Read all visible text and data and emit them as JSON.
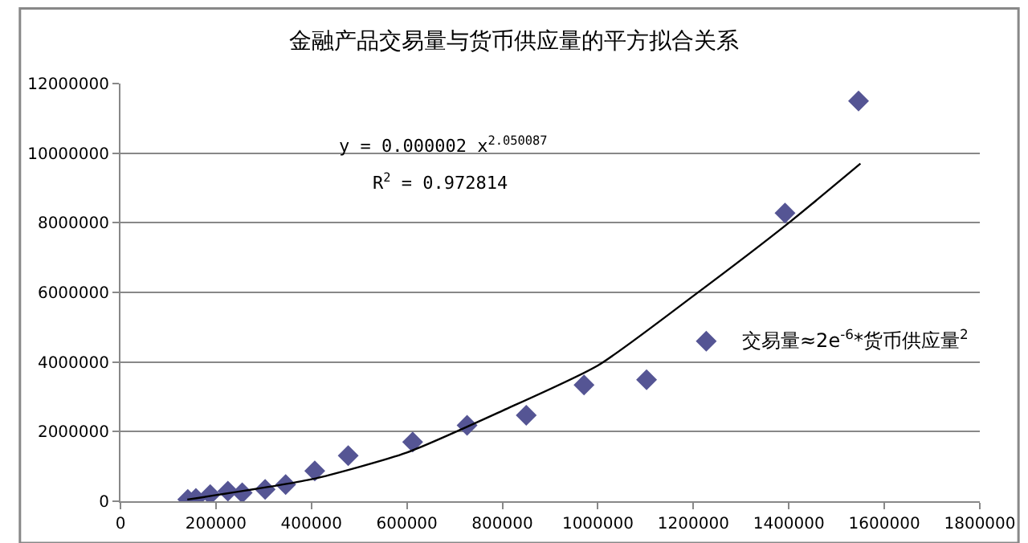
{
  "chart_data": {
    "type": "scatter",
    "title": "金融产品交易量与货币供应量的平方拟合关系",
    "xlim": [
      0,
      1800000
    ],
    "xticks": [
      0,
      200000,
      400000,
      600000,
      800000,
      1000000,
      1200000,
      1400000,
      1600000,
      1800000
    ],
    "ylim": [
      0,
      12000000
    ],
    "yticks": [
      0,
      2000000,
      4000000,
      6000000,
      8000000,
      10000000,
      12000000
    ],
    "grid": "y",
    "marker": "diamond",
    "series": [
      {
        "color": "#555594",
        "x": [
          141000,
          158000,
          188000,
          225000,
          255000,
          303000,
          346000,
          407000,
          477000,
          612000,
          726000,
          850000,
          971000,
          1102000,
          1227000,
          1392000,
          1546000
        ],
        "values": [
          50000,
          80000,
          190000,
          290000,
          240000,
          340000,
          480000,
          870000,
          1310000,
          1700000,
          2180000,
          2470000,
          3340000,
          3490000,
          4600000,
          8280000,
          11500000
        ]
      },
      {
        "type": "line",
        "color": "#000000",
        "marker": "none",
        "line_style": "solid",
        "x": [
          140000,
          400000,
          600000,
          800000,
          1000000,
          1200000,
          1400000,
          1550000
        ],
        "values": [
          50000,
          630000,
          1400000,
          2600000,
          3900000,
          5900000,
          8000000,
          9700000
        ]
      }
    ],
    "annotations": [
      "y = 0.000002 x$^{2.050087}$",
      "R$^{2}$ = 0.972814",
      "交易量≈2e$^{-6}$*货币供应量$^{2}$"
    ]
  }
}
